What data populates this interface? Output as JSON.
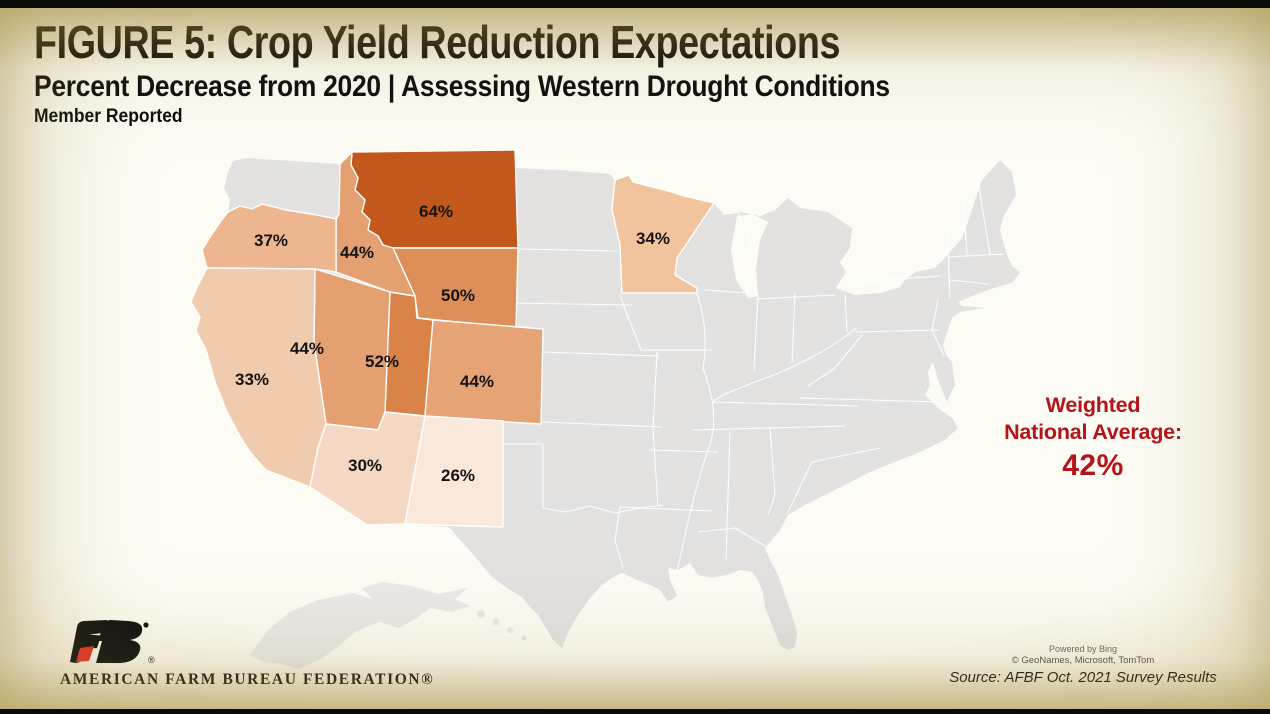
{
  "header": {
    "title": "FIGURE 5: Crop Yield Reduction Expectations",
    "subtitle": "Percent Decrease from 2020 | Assessing Western Drought Conditions",
    "note": "Member Reported"
  },
  "summary": {
    "line1": "Weighted",
    "line2": "National Average:",
    "value": "42%",
    "color": "#B5121A"
  },
  "logo": {
    "org": "AMERICAN FARM BUREAU FEDERATION®",
    "registered": "®"
  },
  "attribution": {
    "powered": "Powered by Bing",
    "credits": "© GeoNames, Microsoft, TomTom",
    "source": "Source: AFBF Oct. 2021 Survey Results"
  },
  "chart_data": {
    "type": "choropleth-map",
    "title": "FIGURE 5: Crop Yield Reduction Expectations",
    "subtitle": "Percent Decrease from 2020 | Assessing Western Drought Conditions",
    "note": "Member Reported",
    "unit": "percent decrease from 2020",
    "region": "United States (lower 48 shown; western states highlighted)",
    "weighted_national_average": 42,
    "no_data_fill": "#E3E2E1",
    "border_color": "#FFFFFF",
    "states": [
      {
        "name": "Montana",
        "abbr": "MT",
        "value": 64,
        "label": "64%",
        "fill": "#C2581C"
      },
      {
        "name": "Utah",
        "abbr": "UT",
        "value": 52,
        "label": "52%",
        "fill": "#DA8349"
      },
      {
        "name": "Wyoming",
        "abbr": "WY",
        "value": 50,
        "label": "50%",
        "fill": "#DE8E58"
      },
      {
        "name": "Idaho",
        "abbr": "ID",
        "value": 44,
        "label": "44%",
        "fill": "#E4A070"
      },
      {
        "name": "Nevada",
        "abbr": "NV",
        "value": 44,
        "label": "44%",
        "fill": "#E4A070"
      },
      {
        "name": "Colorado",
        "abbr": "CO",
        "value": 44,
        "label": "44%",
        "fill": "#E6A476"
      },
      {
        "name": "Oregon",
        "abbr": "OR",
        "value": 37,
        "label": "37%",
        "fill": "#ECB78E"
      },
      {
        "name": "Minnesota",
        "abbr": "MN",
        "value": 34,
        "label": "34%",
        "fill": "#F1C49E"
      },
      {
        "name": "California",
        "abbr": "CA",
        "value": 33,
        "label": "33%",
        "fill": "#F1CBAD"
      },
      {
        "name": "Arizona",
        "abbr": "AZ",
        "value": 30,
        "label": "30%",
        "fill": "#F5D8C3"
      },
      {
        "name": "New Mexico",
        "abbr": "NM",
        "value": 26,
        "label": "26%",
        "fill": "#FAE8DB"
      }
    ]
  }
}
